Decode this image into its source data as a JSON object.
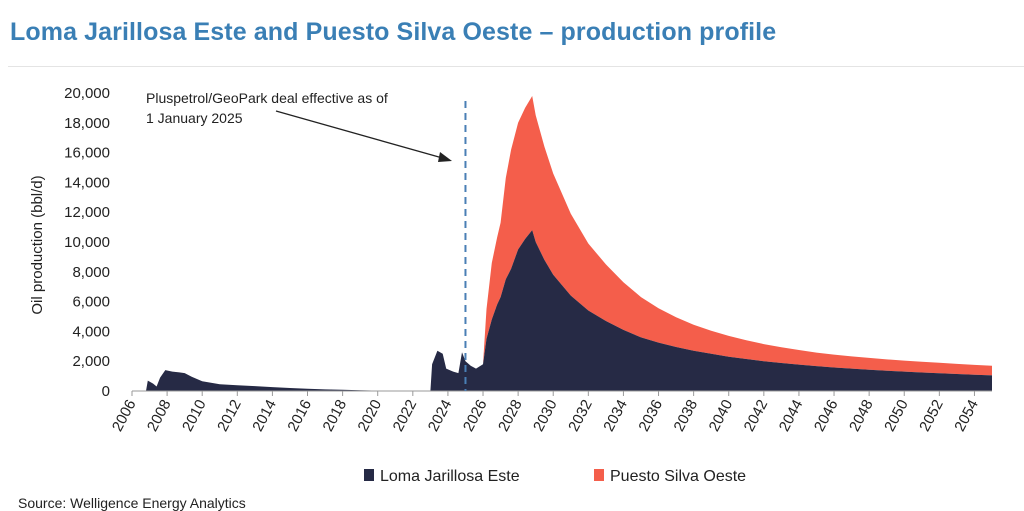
{
  "title": "Loma Jarillosa Este and Puesto Silva Oeste – production profile",
  "source": "Source: Welligence Energy Analytics",
  "colors": {
    "title": "#3a7fb5",
    "loma": "#262a45",
    "puesto": "#f45e4b",
    "marker": "#4a7fb5"
  },
  "chart_data": {
    "type": "area",
    "stacked": true,
    "title": "Loma Jarillosa Este and Puesto Silva Oeste – production profile",
    "ylabel": "Oil production (bbl/d)",
    "xlabel": "",
    "ylim": [
      0,
      20000
    ],
    "yticks": [
      "0",
      "2,000",
      "4,000",
      "6,000",
      "8,000",
      "10,000",
      "12,000",
      "14,000",
      "16,000",
      "18,000",
      "20,000"
    ],
    "xlim": [
      2006,
      2055
    ],
    "xticks": [
      "2006",
      "2008",
      "2010",
      "2012",
      "2014",
      "2016",
      "2018",
      "2020",
      "2022",
      "2024",
      "2026",
      "2028",
      "2030",
      "2032",
      "2034",
      "2036",
      "2038",
      "2040",
      "2042",
      "2044",
      "2046",
      "2048",
      "2050",
      "2052",
      "2054"
    ],
    "legend": [
      "Loma Jarillosa Este",
      "Puesto Silva Oeste"
    ],
    "legend_position": "bottom",
    "annotation": {
      "lines": [
        "Pluspetrol/GeoPark deal effective as of",
        "1 January 2025"
      ],
      "x": 2025.0
    },
    "series": [
      {
        "name": "Loma Jarillosa Este",
        "points": [
          [
            2006.8,
            0
          ],
          [
            2006.9,
            700
          ],
          [
            2007.2,
            500
          ],
          [
            2007.4,
            300
          ],
          [
            2007.6,
            900
          ],
          [
            2007.9,
            1400
          ],
          [
            2008.3,
            1300
          ],
          [
            2008.7,
            1250
          ],
          [
            2009.0,
            1200
          ],
          [
            2009.4,
            950
          ],
          [
            2010.0,
            650
          ],
          [
            2011.0,
            450
          ],
          [
            2012.0,
            380
          ],
          [
            2013.0,
            330
          ],
          [
            2014.0,
            260
          ],
          [
            2015.0,
            200
          ],
          [
            2016.0,
            150
          ],
          [
            2017.0,
            110
          ],
          [
            2018.0,
            80
          ],
          [
            2019.0,
            50
          ],
          [
            2020.0,
            30
          ],
          [
            2020.5,
            0
          ],
          [
            2023.0,
            0
          ],
          [
            2023.1,
            1800
          ],
          [
            2023.4,
            2700
          ],
          [
            2023.7,
            2500
          ],
          [
            2023.9,
            1500
          ],
          [
            2024.3,
            1300
          ],
          [
            2024.6,
            1200
          ],
          [
            2024.8,
            2600
          ],
          [
            2025.0,
            2000
          ],
          [
            2025.3,
            1700
          ],
          [
            2025.6,
            1500
          ],
          [
            2026.0,
            1800
          ],
          [
            2026.2,
            3500
          ],
          [
            2026.5,
            4800
          ],
          [
            2026.8,
            5800
          ],
          [
            2027.0,
            6300
          ],
          [
            2027.3,
            7500
          ],
          [
            2027.6,
            8200
          ],
          [
            2028.0,
            9500
          ],
          [
            2028.4,
            10200
          ],
          [
            2028.8,
            10800
          ],
          [
            2029.0,
            10000
          ],
          [
            2029.5,
            8800
          ],
          [
            2030.0,
            7800
          ],
          [
            2031.0,
            6400
          ],
          [
            2032.0,
            5400
          ],
          [
            2033.0,
            4700
          ],
          [
            2034.0,
            4100
          ],
          [
            2035.0,
            3600
          ],
          [
            2036.0,
            3250
          ],
          [
            2037.0,
            2950
          ],
          [
            2038.0,
            2700
          ],
          [
            2039.0,
            2500
          ],
          [
            2040.0,
            2300
          ],
          [
            2041.0,
            2150
          ],
          [
            2042.0,
            2000
          ],
          [
            2043.0,
            1880
          ],
          [
            2044.0,
            1770
          ],
          [
            2045.0,
            1670
          ],
          [
            2046.0,
            1580
          ],
          [
            2047.0,
            1500
          ],
          [
            2048.0,
            1430
          ],
          [
            2049.0,
            1360
          ],
          [
            2050.0,
            1300
          ],
          [
            2051.0,
            1240
          ],
          [
            2052.0,
            1190
          ],
          [
            2053.0,
            1140
          ],
          [
            2054.0,
            1090
          ],
          [
            2055.0,
            1050
          ]
        ]
      },
      {
        "name": "Puesto Silva Oeste",
        "points": [
          [
            2026.0,
            0
          ],
          [
            2026.2,
            2000
          ],
          [
            2026.5,
            3800
          ],
          [
            2026.8,
            4500
          ],
          [
            2027.0,
            5000
          ],
          [
            2027.3,
            6800
          ],
          [
            2027.6,
            8000
          ],
          [
            2028.0,
            8500
          ],
          [
            2028.4,
            8800
          ],
          [
            2028.8,
            9000
          ],
          [
            2029.0,
            8500
          ],
          [
            2029.5,
            7600
          ],
          [
            2030.0,
            6800
          ],
          [
            2031.0,
            5500
          ],
          [
            2032.0,
            4500
          ],
          [
            2033.0,
            3800
          ],
          [
            2034.0,
            3200
          ],
          [
            2035.0,
            2700
          ],
          [
            2036.0,
            2300
          ],
          [
            2037.0,
            2000
          ],
          [
            2038.0,
            1750
          ],
          [
            2039.0,
            1550
          ],
          [
            2040.0,
            1400
          ],
          [
            2041.0,
            1260
          ],
          [
            2042.0,
            1150
          ],
          [
            2043.0,
            1060
          ],
          [
            2044.0,
            980
          ],
          [
            2045.0,
            910
          ],
          [
            2046.0,
            860
          ],
          [
            2047.0,
            820
          ],
          [
            2048.0,
            790
          ],
          [
            2049.0,
            760
          ],
          [
            2050.0,
            740
          ],
          [
            2051.0,
            720
          ],
          [
            2052.0,
            700
          ],
          [
            2053.0,
            680
          ],
          [
            2054.0,
            660
          ],
          [
            2055.0,
            650
          ]
        ]
      }
    ]
  }
}
